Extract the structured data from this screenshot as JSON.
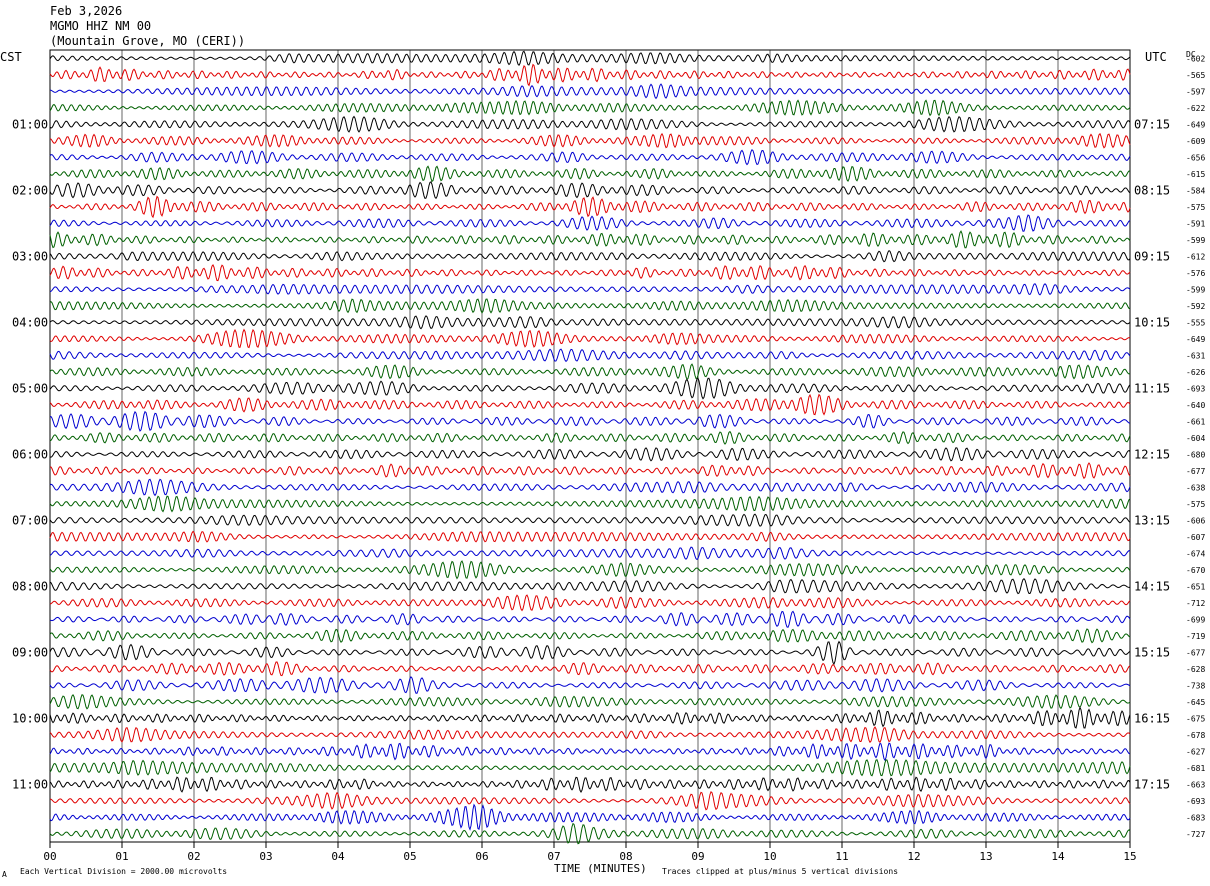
{
  "header": {
    "date": "Feb 3,2026",
    "station": "MGMO HHZ NM 00",
    "location": "(Mountain Grove, MO (CERI))"
  },
  "left_tz": "CST",
  "right_tz": "UTC",
  "dc_header": "DC",
  "footer": {
    "scale_note": "Each Vertical Division = 2000.00 microvolts",
    "clip_note": "Traces clipped at plus/minus 5 vertical divisions",
    "corner_mark": "A"
  },
  "colors": {
    "trace_cycle": [
      "#000000",
      "#e00000",
      "#0000d0",
      "#006000"
    ]
  },
  "chart_data": {
    "type": "line",
    "xlabel": "TIME (MINUTES)",
    "x_ticks": [
      "00",
      "01",
      "02",
      "03",
      "04",
      "05",
      "06",
      "07",
      "08",
      "09",
      "10",
      "11",
      "12",
      "13",
      "14",
      "15"
    ],
    "xlim": [
      0,
      15
    ],
    "left_hour_labels": [
      "01:00",
      "02:00",
      "03:00",
      "04:00",
      "05:00",
      "06:00",
      "07:00",
      "08:00",
      "09:00",
      "10:00",
      "11:00"
    ],
    "right_hour_labels": [
      "07:15",
      "08:15",
      "09:15",
      "10:15",
      "11:15",
      "12:15",
      "13:15",
      "14:15",
      "15:15",
      "16:15",
      "17:15"
    ],
    "dc_offsets": [
      "-602",
      "-565",
      "-597",
      "-622",
      "-649",
      "-609",
      "-656",
      "-615",
      "-584",
      "-575",
      "-591",
      "-599",
      "-612",
      "-576",
      "-599",
      "-592",
      "-555",
      "-649",
      "-631",
      "-626",
      "-693",
      "-640",
      "-661",
      "-604",
      "-680",
      "-677",
      "-638",
      "-575",
      "-606",
      "-607",
      "-674",
      "-670",
      "-651",
      "-712",
      "-699",
      "-719",
      "-677",
      "-628",
      "-738",
      "-645",
      "-675",
      "-678",
      "-627",
      "-681",
      "-663",
      "-693",
      "-683",
      "-727"
    ]
  }
}
